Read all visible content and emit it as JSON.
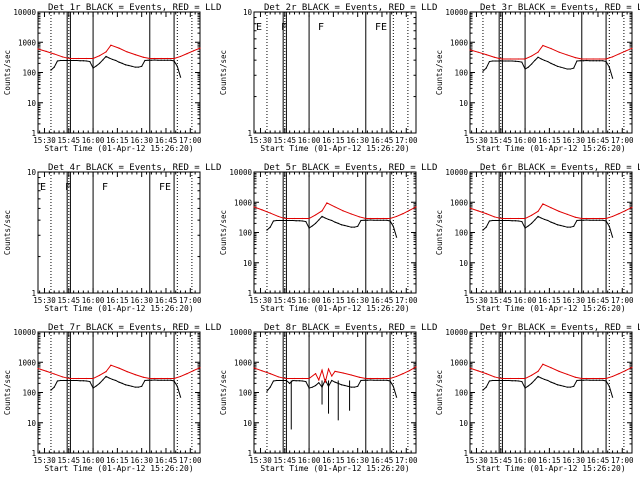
{
  "chart_data": {
    "type": "line",
    "figure": "RHESSI detector event rates, 3x3 grid of panels",
    "series_colors": {
      "events": "#000000",
      "lld": "#e00000"
    },
    "xlabel": "Start Time (01-Apr-12 15:26:20)",
    "ylabel": "Counts/sec",
    "x_tick_labels": [
      "15:30",
      "15:45",
      "16:00",
      "16:15",
      "16:30",
      "16:45",
      "17:00"
    ],
    "x_ticks_min": [
      4,
      19,
      34,
      49,
      64,
      79,
      94
    ],
    "xlim_min": [
      0,
      100
    ],
    "solid_lines_min": [
      18,
      20,
      34,
      69,
      84
    ],
    "dotted_lines_min": [
      8,
      19,
      86,
      95
    ],
    "panels": [
      {
        "title": "Det 1r BLACK = Events, RED = LLD",
        "has_data": true,
        "ylim": [
          1,
          10000
        ],
        "y_tick_labels": [
          "1",
          "10",
          "100",
          "1000",
          "10000"
        ],
        "markers": [],
        "spikes": [],
        "events_x": [
          8,
          10,
          12,
          14,
          16,
          18,
          20,
          22,
          24,
          26,
          28,
          30,
          32,
          34,
          36,
          38,
          40,
          42,
          44,
          46,
          48,
          50,
          52,
          54,
          56,
          58,
          60,
          62,
          64,
          66,
          68,
          70,
          72,
          74,
          76,
          78,
          80,
          82,
          84,
          86,
          88
        ],
        "events_y": [
          120,
          150,
          240,
          250,
          250,
          250,
          250,
          250,
          250,
          245,
          245,
          240,
          230,
          140,
          165,
          200,
          260,
          340,
          300,
          270,
          250,
          220,
          200,
          180,
          170,
          160,
          150,
          150,
          160,
          250,
          255,
          255,
          260,
          255,
          255,
          255,
          255,
          255,
          240,
          160,
          70
        ],
        "lld_x": [
          0,
          5,
          10,
          15,
          18,
          20,
          25,
          30,
          34,
          38,
          42,
          45,
          50,
          55,
          60,
          65,
          69,
          72,
          76,
          80,
          84,
          88,
          92,
          96,
          100
        ],
        "lld_y": [
          600,
          500,
          410,
          330,
          300,
          290,
          290,
          290,
          290,
          360,
          480,
          800,
          640,
          480,
          390,
          320,
          290,
          290,
          290,
          290,
          290,
          340,
          420,
          520,
          640
        ]
      },
      {
        "title": "Det 2r BLACK = Events, RED = LLD",
        "has_data": false,
        "ylim": [
          1,
          10
        ],
        "y_tick_labels": [
          "1",
          "10"
        ],
        "markers": [
          "E",
          "F",
          "F",
          "FE"
        ],
        "spikes": [],
        "events_x": [],
        "events_y": [],
        "lld_x": [],
        "lld_y": []
      },
      {
        "title": "Det 3r BLACK = Events, RED = LLD",
        "has_data": true,
        "ylim": [
          1,
          10000
        ],
        "y_tick_labels": [
          "1",
          "10",
          "100",
          "1000",
          "10000"
        ],
        "markers": [],
        "spikes": [],
        "events_x": [
          8,
          10,
          12,
          14,
          16,
          18,
          20,
          22,
          24,
          26,
          28,
          30,
          32,
          34,
          36,
          38,
          40,
          42,
          44,
          46,
          48,
          50,
          52,
          54,
          56,
          58,
          60,
          62,
          64,
          66,
          68,
          70,
          72,
          74,
          76,
          78,
          80,
          82,
          84,
          86,
          88
        ],
        "events_y": [
          110,
          140,
          230,
          240,
          240,
          240,
          240,
          240,
          240,
          240,
          235,
          230,
          220,
          130,
          150,
          190,
          250,
          320,
          280,
          250,
          230,
          200,
          180,
          160,
          150,
          140,
          130,
          130,
          140,
          240,
          245,
          245,
          250,
          245,
          245,
          245,
          245,
          245,
          230,
          150,
          65
        ],
        "lld_x": [
          0,
          5,
          10,
          15,
          18,
          20,
          25,
          30,
          34,
          38,
          42,
          45,
          50,
          55,
          60,
          65,
          69,
          72,
          76,
          80,
          84,
          88,
          92,
          96,
          100
        ],
        "lld_y": [
          560,
          470,
          390,
          320,
          290,
          280,
          280,
          280,
          280,
          350,
          470,
          780,
          620,
          470,
          380,
          310,
          280,
          280,
          280,
          280,
          280,
          330,
          410,
          510,
          630
        ]
      },
      {
        "title": "Det 4r BLACK = Events, RED = LLD",
        "has_data": false,
        "ylim": [
          1,
          10
        ],
        "y_tick_labels": [
          "1",
          "10"
        ],
        "markers": [
          "E",
          "F",
          "F",
          "FE"
        ],
        "spikes": [],
        "events_x": [],
        "events_y": [],
        "lld_x": [],
        "lld_y": []
      },
      {
        "title": "Det 5r BLACK = Events, RED = LLD",
        "has_data": true,
        "ylim": [
          1,
          10000
        ],
        "y_tick_labels": [
          "1",
          "10",
          "100",
          "1000",
          "10000"
        ],
        "markers": [],
        "spikes": [],
        "events_x": [
          8,
          10,
          12,
          14,
          16,
          18,
          20,
          22,
          24,
          26,
          28,
          30,
          32,
          34,
          36,
          38,
          40,
          42,
          44,
          46,
          48,
          50,
          52,
          54,
          56,
          58,
          60,
          62,
          64,
          66,
          68,
          70,
          72,
          74,
          76,
          78,
          80,
          82,
          84,
          86,
          88
        ],
        "events_y": [
          120,
          150,
          240,
          250,
          250,
          250,
          250,
          250,
          250,
          245,
          245,
          240,
          230,
          140,
          165,
          200,
          260,
          340,
          300,
          270,
          250,
          220,
          200,
          180,
          170,
          160,
          150,
          150,
          160,
          250,
          255,
          255,
          260,
          255,
          255,
          255,
          255,
          255,
          240,
          160,
          70
        ],
        "lld_x": [
          0,
          5,
          10,
          15,
          18,
          20,
          25,
          30,
          34,
          38,
          42,
          45,
          50,
          55,
          60,
          65,
          69,
          72,
          76,
          80,
          84,
          88,
          92,
          96,
          100
        ],
        "lld_y": [
          700,
          560,
          440,
          340,
          300,
          290,
          290,
          290,
          290,
          380,
          520,
          950,
          700,
          520,
          410,
          330,
          290,
          290,
          290,
          290,
          290,
          340,
          420,
          540,
          700
        ]
      },
      {
        "title": "Det 6r BLACK = Events, RED = LLD",
        "has_data": true,
        "ylim": [
          1,
          10000
        ],
        "y_tick_labels": [
          "1",
          "10",
          "100",
          "1000",
          "10000"
        ],
        "markers": [],
        "spikes": [],
        "events_x": [
          8,
          10,
          12,
          14,
          16,
          18,
          20,
          22,
          24,
          26,
          28,
          30,
          32,
          34,
          36,
          38,
          40,
          42,
          44,
          46,
          48,
          50,
          52,
          54,
          56,
          58,
          60,
          62,
          64,
          66,
          68,
          70,
          72,
          74,
          76,
          78,
          80,
          82,
          84,
          86,
          88
        ],
        "events_y": [
          120,
          150,
          240,
          250,
          250,
          250,
          250,
          250,
          250,
          245,
          245,
          240,
          230,
          140,
          165,
          200,
          260,
          340,
          300,
          270,
          250,
          220,
          200,
          180,
          170,
          160,
          150,
          150,
          160,
          250,
          255,
          255,
          260,
          255,
          255,
          255,
          255,
          255,
          240,
          160,
          70
        ],
        "lld_x": [
          0,
          5,
          10,
          15,
          18,
          20,
          25,
          30,
          34,
          38,
          42,
          45,
          50,
          55,
          60,
          65,
          69,
          72,
          76,
          80,
          84,
          88,
          92,
          96,
          100
        ],
        "lld_y": [
          640,
          520,
          420,
          330,
          300,
          290,
          290,
          290,
          290,
          370,
          500,
          880,
          660,
          500,
          400,
          320,
          290,
          290,
          290,
          290,
          290,
          340,
          420,
          530,
          680
        ]
      },
      {
        "title": "Det 7r BLACK = Events, RED = LLD",
        "has_data": true,
        "ylim": [
          1,
          10000
        ],
        "y_tick_labels": [
          "1",
          "10",
          "100",
          "1000",
          "10000"
        ],
        "markers": [],
        "spikes": [],
        "events_x": [
          8,
          10,
          12,
          14,
          16,
          18,
          20,
          22,
          24,
          26,
          28,
          30,
          32,
          34,
          36,
          38,
          40,
          42,
          44,
          46,
          48,
          50,
          52,
          54,
          56,
          58,
          60,
          62,
          64,
          66,
          68,
          70,
          72,
          74,
          76,
          78,
          80,
          82,
          84,
          86,
          88
        ],
        "events_y": [
          120,
          150,
          240,
          250,
          250,
          250,
          250,
          250,
          250,
          245,
          245,
          240,
          230,
          140,
          165,
          200,
          260,
          340,
          300,
          270,
          250,
          220,
          200,
          180,
          170,
          160,
          150,
          150,
          160,
          250,
          255,
          255,
          260,
          255,
          255,
          255,
          255,
          255,
          240,
          160,
          70
        ],
        "lld_x": [
          0,
          5,
          10,
          15,
          18,
          20,
          25,
          30,
          34,
          38,
          42,
          45,
          50,
          55,
          60,
          65,
          69,
          72,
          76,
          80,
          84,
          88,
          92,
          96,
          100
        ],
        "lld_y": [
          620,
          510,
          410,
          330,
          300,
          290,
          290,
          290,
          290,
          370,
          490,
          800,
          640,
          490,
          390,
          320,
          290,
          290,
          290,
          290,
          290,
          340,
          420,
          530,
          660
        ]
      },
      {
        "title": "Det 8r BLACK = Events, RED = LLD",
        "has_data": true,
        "ylim": [
          1,
          10000
        ],
        "y_tick_labels": [
          "1",
          "10",
          "100",
          "1000",
          "10000"
        ],
        "markers": [],
        "spikes": [
          {
            "x": 23,
            "y": 6
          },
          {
            "x": 42,
            "y": 40
          },
          {
            "x": 46,
            "y": 20
          },
          {
            "x": 52,
            "y": 12
          },
          {
            "x": 59,
            "y": 25
          }
        ],
        "events_x": [
          8,
          10,
          12,
          14,
          16,
          18,
          20,
          22,
          24,
          26,
          28,
          30,
          32,
          34,
          36,
          38,
          40,
          42,
          44,
          46,
          48,
          50,
          52,
          54,
          56,
          58,
          60,
          62,
          64,
          66,
          68,
          70,
          72,
          74,
          76,
          78,
          80,
          82,
          84,
          86,
          88
        ],
        "events_y": [
          110,
          150,
          240,
          250,
          250,
          250,
          250,
          200,
          250,
          245,
          245,
          240,
          230,
          140,
          150,
          170,
          210,
          150,
          260,
          160,
          250,
          220,
          200,
          180,
          170,
          160,
          150,
          150,
          160,
          250,
          255,
          255,
          260,
          255,
          255,
          255,
          255,
          255,
          240,
          160,
          70
        ],
        "lld_x": [
          0,
          5,
          10,
          15,
          18,
          20,
          25,
          30,
          34,
          38,
          40,
          42,
          44,
          46,
          48,
          50,
          55,
          60,
          65,
          69,
          72,
          76,
          80,
          84,
          88,
          92,
          96,
          100
        ],
        "lld_y": [
          650,
          520,
          420,
          330,
          300,
          290,
          290,
          290,
          290,
          420,
          260,
          550,
          220,
          600,
          350,
          500,
          440,
          380,
          320,
          290,
          290,
          290,
          290,
          290,
          340,
          420,
          530,
          700
        ]
      },
      {
        "title": "Det 9r BLACK = Events, RED = LLD",
        "has_data": true,
        "ylim": [
          1,
          10000
        ],
        "y_tick_labels": [
          "1",
          "10",
          "100",
          "1000",
          "10000"
        ],
        "markers": [],
        "spikes": [],
        "events_x": [
          8,
          10,
          12,
          14,
          16,
          18,
          20,
          22,
          24,
          26,
          28,
          30,
          32,
          34,
          36,
          38,
          40,
          42,
          44,
          46,
          48,
          50,
          52,
          54,
          56,
          58,
          60,
          62,
          64,
          66,
          68,
          70,
          72,
          74,
          76,
          78,
          80,
          82,
          84,
          86,
          88
        ],
        "events_y": [
          120,
          150,
          240,
          250,
          250,
          250,
          250,
          250,
          250,
          245,
          245,
          240,
          230,
          140,
          165,
          200,
          260,
          340,
          300,
          270,
          250,
          220,
          200,
          180,
          170,
          160,
          150,
          150,
          160,
          250,
          255,
          255,
          260,
          255,
          255,
          255,
          255,
          255,
          240,
          160,
          70
        ],
        "lld_x": [
          0,
          5,
          10,
          15,
          18,
          20,
          25,
          30,
          34,
          38,
          42,
          45,
          50,
          55,
          60,
          65,
          69,
          72,
          76,
          80,
          84,
          88,
          92,
          96,
          100
        ],
        "lld_y": [
          640,
          520,
          420,
          330,
          300,
          290,
          290,
          290,
          290,
          370,
          500,
          860,
          660,
          500,
          400,
          320,
          290,
          290,
          290,
          290,
          290,
          340,
          420,
          530,
          680
        ]
      }
    ]
  }
}
